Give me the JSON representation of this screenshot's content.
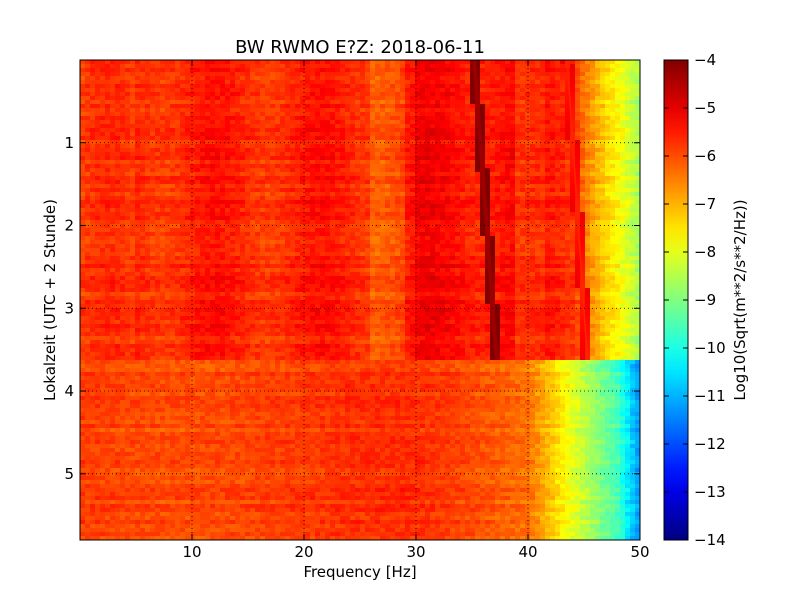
{
  "chart_data": {
    "type": "heatmap",
    "title": "BW RWMO E?Z: 2018-06-11",
    "xlabel": "Frequency [Hz]",
    "ylabel": "Lokalzeit (UTC + 2 Stunde)",
    "xlim": [
      0,
      50
    ],
    "ylim": [
      5.8,
      0
    ],
    "x_ticks": [
      10,
      20,
      30,
      40,
      50
    ],
    "y_ticks": [
      1,
      2,
      3,
      4,
      5
    ],
    "grid": true,
    "colormap": "jet",
    "colorbar": {
      "label": "Log10(Sqrt(m**2/s**2/Hz))",
      "min": -14,
      "max": -4,
      "ticks": [
        -4,
        -5,
        -6,
        -7,
        -8,
        -9,
        -10,
        -11,
        -12,
        -13,
        -14
      ]
    },
    "features": [
      {
        "kind": "regime-change",
        "time": 3.62,
        "description_value": "signal level drops after this time"
      },
      {
        "kind": "drifting-line",
        "from": [
          35.2,
          0
        ],
        "to": [
          37.2,
          3.62
        ],
        "level": -4.3
      },
      {
        "kind": "drifting-line",
        "from": [
          43.5,
          0
        ],
        "to": [
          45.3,
          3.62
        ],
        "level": -5.6
      }
    ],
    "value_range_observed": [
      -10.5,
      -4.3
    ]
  }
}
